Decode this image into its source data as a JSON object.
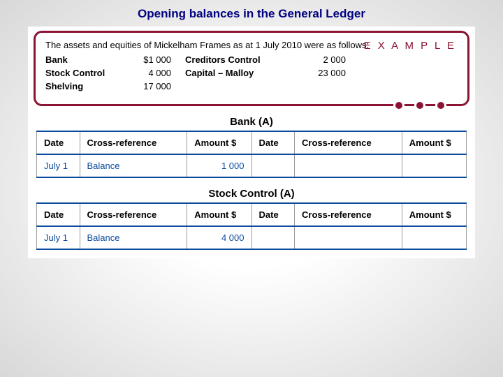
{
  "title": "Opening balances in the General Ledger",
  "example": {
    "label": "E X A M P L E",
    "intro": "The assets and equities of Mickelham Frames as at 1 July 2010 were as follows:",
    "rows": [
      {
        "l1": "Bank",
        "v1": "$1 000",
        "l2": "Creditors Control",
        "v2": "2 000"
      },
      {
        "l1": "Stock Control",
        "v1": "4 000",
        "l2": "Capital – Malloy",
        "v2": "23 000"
      },
      {
        "l1": "Shelving",
        "v1": "17 000",
        "l2": "",
        "v2": ""
      }
    ]
  },
  "ledgers": [
    {
      "title": "Bank (A)",
      "headers": [
        "Date",
        "Cross-reference",
        "Amount $",
        "Date",
        "Cross-reference",
        "Amount $"
      ],
      "row": {
        "date": "July 1",
        "xref": "Balance",
        "amt": "1 000",
        "date2": "",
        "xref2": "",
        "amt2": ""
      }
    },
    {
      "title": "Stock Control (A)",
      "headers": [
        "Date",
        "Cross-reference",
        "Amount $",
        "Date",
        "Cross-reference",
        "Amount $"
      ],
      "row": {
        "date": "July 1",
        "xref": "Balance",
        "amt": "4 000",
        "date2": "",
        "xref2": "",
        "amt2": ""
      }
    }
  ],
  "colors": {
    "title": "#000080",
    "box_border": "#8a1432",
    "example_text": "#8a1432",
    "table_border": "#0b4a9e",
    "entry_text": "#0b4a9e"
  }
}
